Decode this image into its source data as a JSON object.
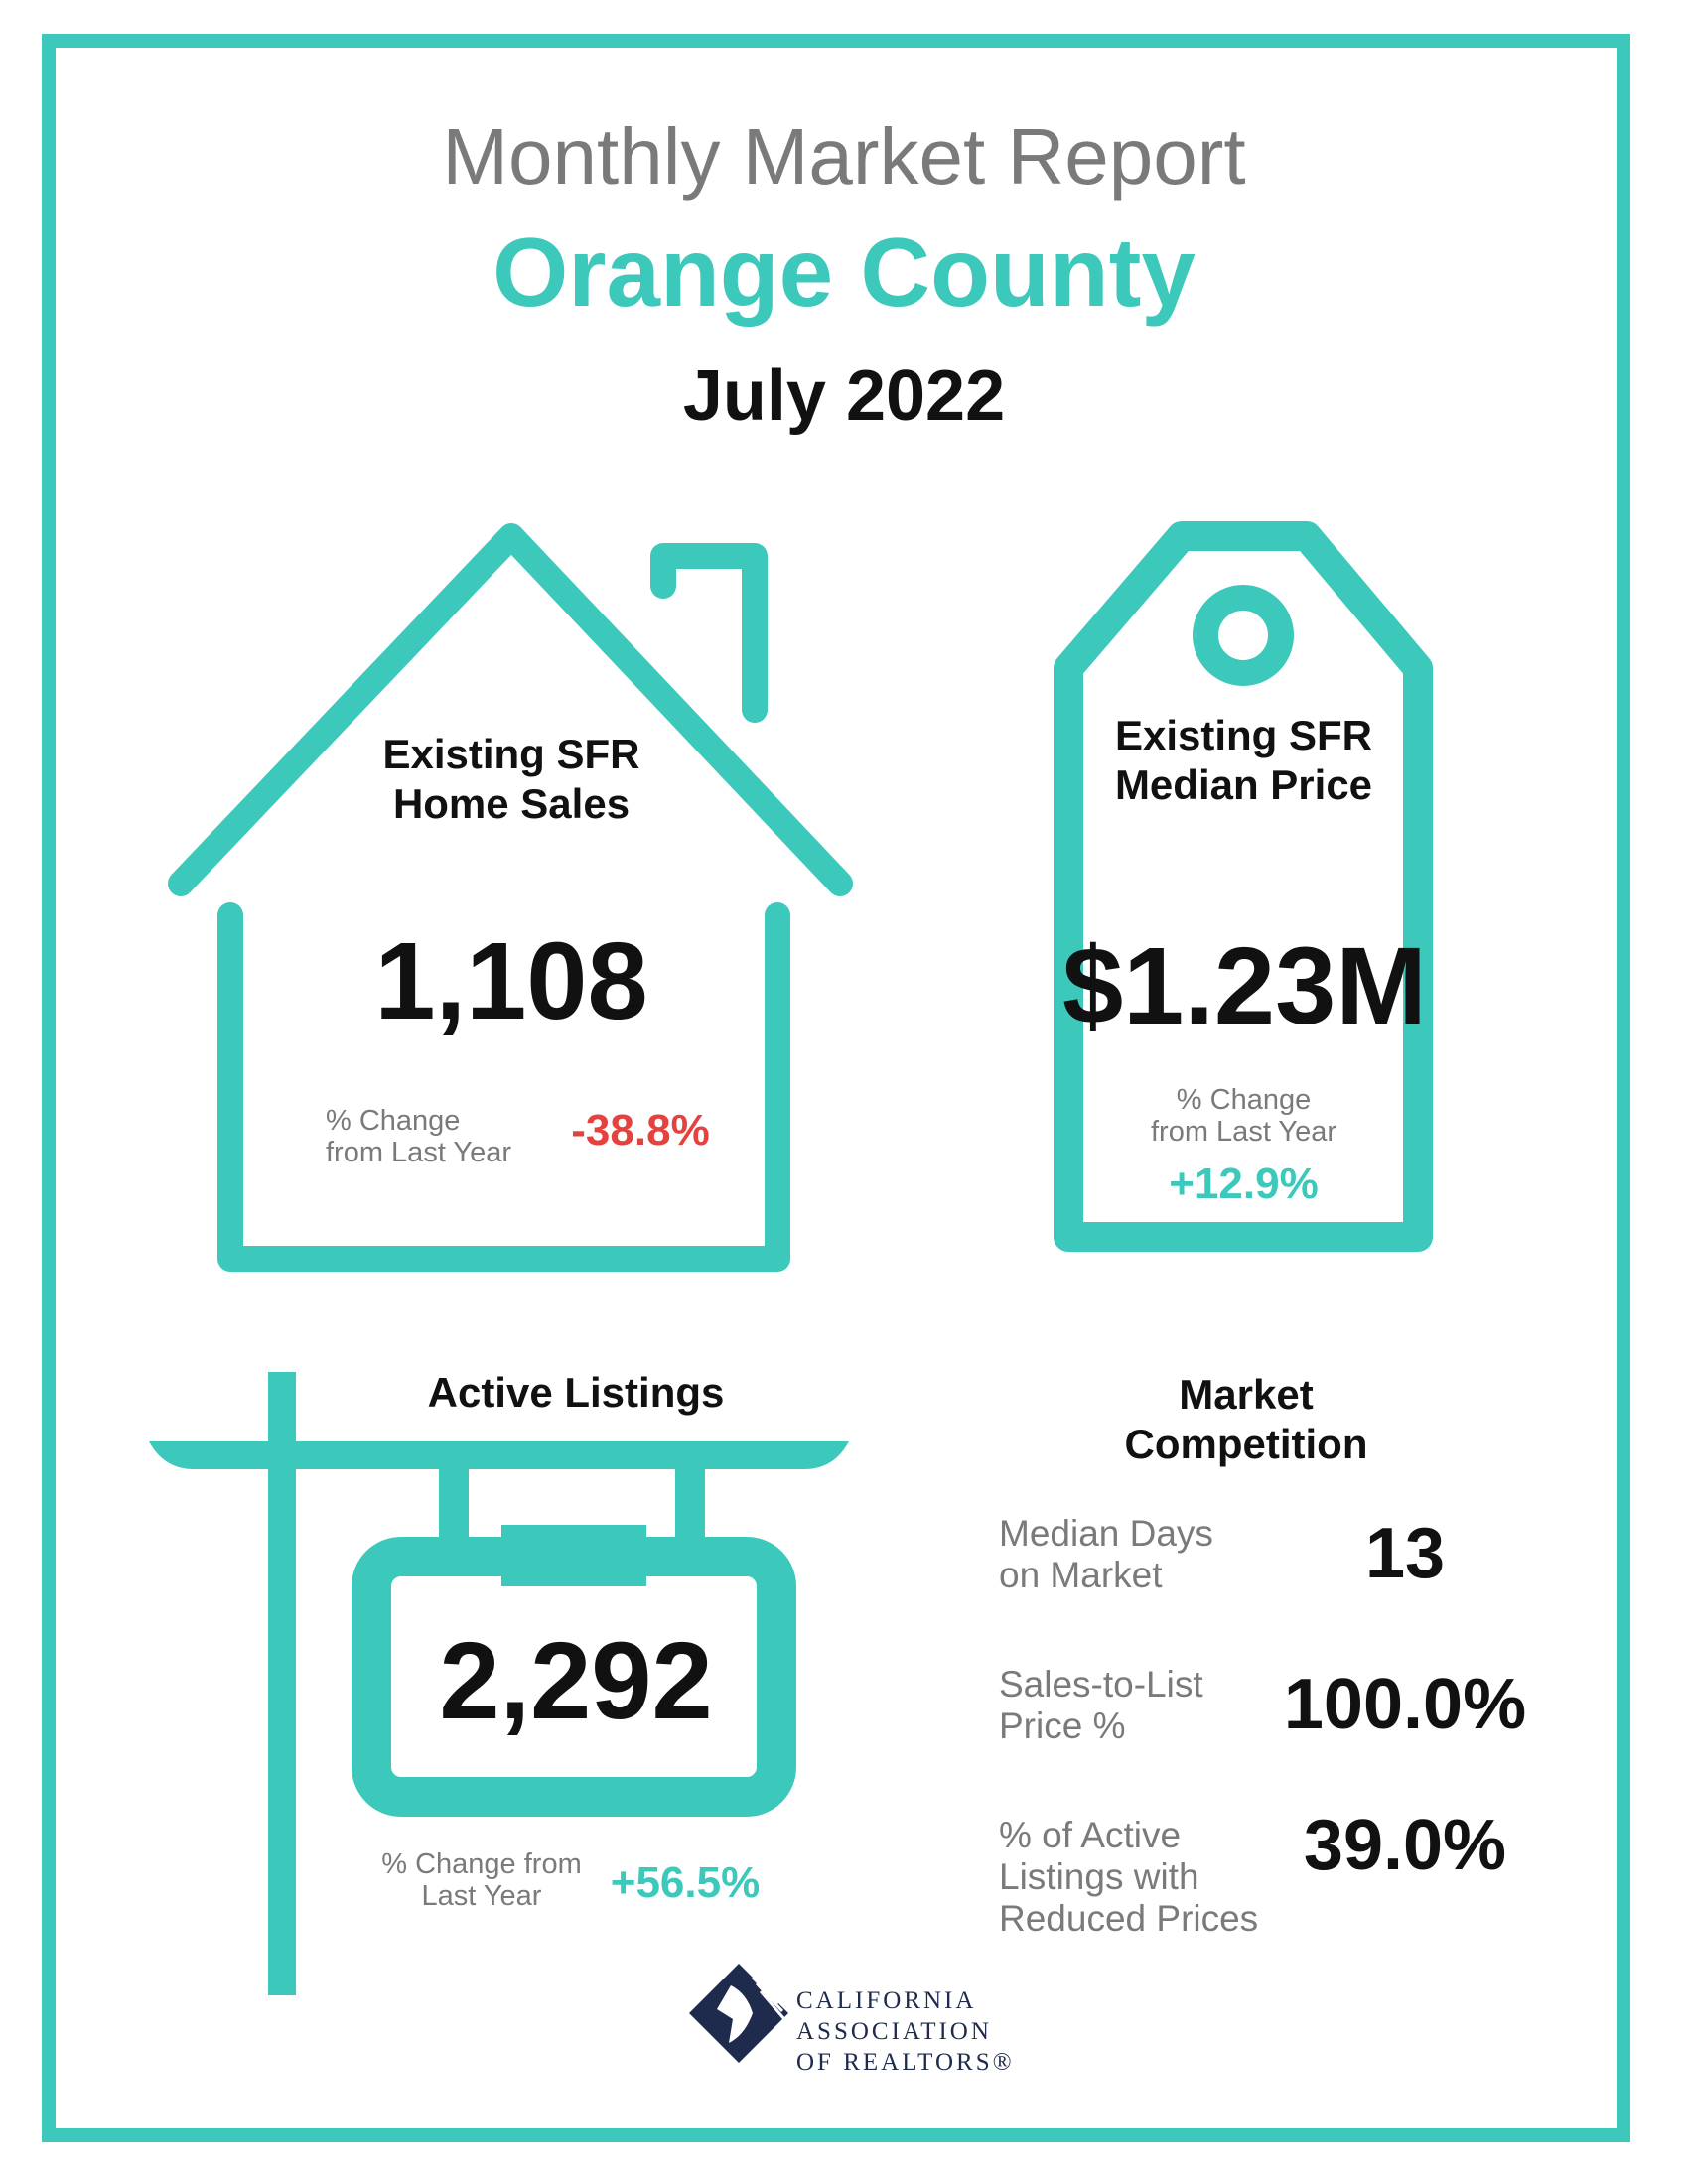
{
  "header": {
    "report_title": "Monthly Market Report",
    "region": "Orange County",
    "period": "July 2022"
  },
  "home_sales": {
    "label_line1": "Existing SFR",
    "label_line2": "Home Sales",
    "value": "1,108",
    "change_label_line1": "% Change",
    "change_label_line2": "from Last Year",
    "change": "-38.8%"
  },
  "median_price": {
    "label_line1": "Existing SFR",
    "label_line2": "Median Price",
    "value": "$1.23M",
    "change_label_line1": "% Change",
    "change_label_line2": "from Last Year",
    "change": "+12.9%"
  },
  "active_listings": {
    "label": "Active Listings",
    "value": "2,292",
    "change_label_line1": "% Change from",
    "change_label_line2": "Last Year",
    "change": "+56.5%"
  },
  "market_competition": {
    "title_line1": "Market",
    "title_line2": "Competition",
    "days_label_line1": "Median Days",
    "days_label_line2": "on Market",
    "days_value": "13",
    "s2l_label_line1": "Sales-to-List",
    "s2l_label_line2": "Price %",
    "s2l_value": "100.0%",
    "reduced_label_line1": "% of Active",
    "reduced_label_line2": "Listings with",
    "reduced_label_line3": "Reduced Prices",
    "reduced_value": "39.0%"
  },
  "logo": {
    "line1": "CALIFORNIA",
    "line2": "ASSOCIATION",
    "line3": "OF REALTORS®"
  },
  "colors": {
    "accent": "#3cc8bb",
    "negative": "#e5423f",
    "muted": "#7a7a7a",
    "logo_navy": "#1f2b4d"
  }
}
